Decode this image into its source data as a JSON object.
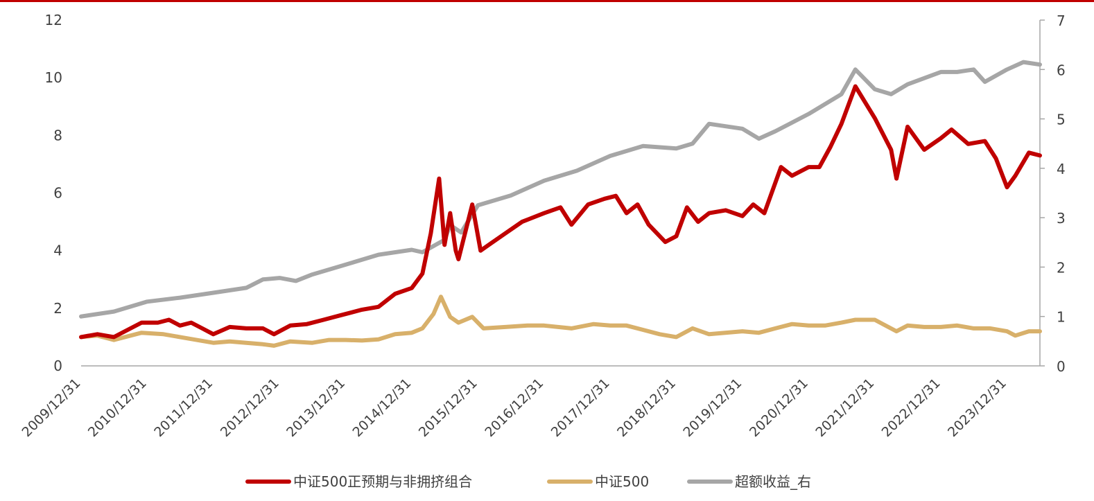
{
  "chart_data": {
    "type": "line",
    "title": "",
    "xlabel": "",
    "ylabel": "",
    "x_tick_labels": [
      "2009/12/31",
      "2010/12/31",
      "2011/12/31",
      "2012/12/31",
      "2013/12/31",
      "2014/12/31",
      "2015/12/31",
      "2016/12/31",
      "2017/12/31",
      "2018/12/31",
      "2019/12/31",
      "2020/12/31",
      "2021/12/31",
      "2022/12/31",
      "2023/12/31"
    ],
    "xlim": [
      "2009/12/31",
      "2024/06/30"
    ],
    "left_axis": {
      "ylim": [
        0,
        12
      ],
      "ticks": [
        "0",
        "2",
        "4",
        "6",
        "8",
        "10",
        "12"
      ]
    },
    "right_axis": {
      "ylim": [
        0,
        7
      ],
      "ticks": [
        "0",
        "1",
        "2",
        "3",
        "4",
        "5",
        "6",
        "7"
      ]
    },
    "grid": false,
    "legend_position": "bottom",
    "series": [
      {
        "name": "中证500正预期与非拥挤组合",
        "axis": "left",
        "color": "#c00000",
        "points": [
          [
            "2009/12/31",
            1.0
          ],
          [
            "2010/03/31",
            1.1
          ],
          [
            "2010/06/30",
            1.0
          ],
          [
            "2010/09/30",
            1.3
          ],
          [
            "2010/11/30",
            1.5
          ],
          [
            "2011/02/28",
            1.5
          ],
          [
            "2011/04/30",
            1.6
          ],
          [
            "2011/06/30",
            1.4
          ],
          [
            "2011/08/31",
            1.5
          ],
          [
            "2011/10/31",
            1.3
          ],
          [
            "2011/12/31",
            1.1
          ],
          [
            "2012/03/31",
            1.35
          ],
          [
            "2012/06/30",
            1.3
          ],
          [
            "2012/09/30",
            1.3
          ],
          [
            "2012/11/30",
            1.1
          ],
          [
            "2013/02/28",
            1.4
          ],
          [
            "2013/05/31",
            1.45
          ],
          [
            "2013/08/31",
            1.6
          ],
          [
            "2013/11/30",
            1.75
          ],
          [
            "2014/03/31",
            1.95
          ],
          [
            "2014/06/30",
            2.05
          ],
          [
            "2014/09/30",
            2.5
          ],
          [
            "2014/12/31",
            2.7
          ],
          [
            "2015/02/28",
            3.2
          ],
          [
            "2015/04/15",
            4.6
          ],
          [
            "2015/05/31",
            6.5
          ],
          [
            "2015/06/30",
            4.2
          ],
          [
            "2015/07/31",
            5.3
          ],
          [
            "2015/08/31",
            4.0
          ],
          [
            "2015/09/15",
            3.7
          ],
          [
            "2015/11/30",
            5.6
          ],
          [
            "2016/01/15",
            4.0
          ],
          [
            "2016/02/29",
            4.2
          ],
          [
            "2016/05/31",
            4.6
          ],
          [
            "2016/08/31",
            5.0
          ],
          [
            "2016/12/31",
            5.3
          ],
          [
            "2017/03/31",
            5.5
          ],
          [
            "2017/05/31",
            4.9
          ],
          [
            "2017/08/31",
            5.6
          ],
          [
            "2017/11/30",
            5.8
          ],
          [
            "2018/01/31",
            5.9
          ],
          [
            "2018/03/31",
            5.3
          ],
          [
            "2018/05/31",
            5.6
          ],
          [
            "2018/07/31",
            4.9
          ],
          [
            "2018/10/31",
            4.3
          ],
          [
            "2018/12/31",
            4.5
          ],
          [
            "2019/02/28",
            5.5
          ],
          [
            "2019/04/30",
            5.0
          ],
          [
            "2019/06/30",
            5.3
          ],
          [
            "2019/09/30",
            5.4
          ],
          [
            "2019/12/31",
            5.2
          ],
          [
            "2020/02/29",
            5.6
          ],
          [
            "2020/04/30",
            5.3
          ],
          [
            "2020/07/31",
            6.9
          ],
          [
            "2020/09/30",
            6.6
          ],
          [
            "2020/12/31",
            6.9
          ],
          [
            "2021/02/28",
            6.9
          ],
          [
            "2021/04/30",
            7.6
          ],
          [
            "2021/06/30",
            8.4
          ],
          [
            "2021/09/15",
            9.7
          ],
          [
            "2021/12/31",
            8.6
          ],
          [
            "2022/03/31",
            7.5
          ],
          [
            "2022/04/30",
            6.5
          ],
          [
            "2022/06/30",
            8.3
          ],
          [
            "2022/09/30",
            7.5
          ],
          [
            "2022/12/31",
            7.9
          ],
          [
            "2023/02/28",
            8.2
          ],
          [
            "2023/05/31",
            7.7
          ],
          [
            "2023/08/31",
            7.8
          ],
          [
            "2023/10/31",
            7.2
          ],
          [
            "2023/12/31",
            6.2
          ],
          [
            "2024/02/15",
            6.6
          ],
          [
            "2024/04/30",
            7.4
          ],
          [
            "2024/06/30",
            7.3
          ]
        ]
      },
      {
        "name": "中证500",
        "axis": "left",
        "color": "#d8b06a",
        "points": [
          [
            "2009/12/31",
            1.0
          ],
          [
            "2010/03/31",
            1.05
          ],
          [
            "2010/06/30",
            0.9
          ],
          [
            "2010/09/30",
            1.05
          ],
          [
            "2010/11/30",
            1.15
          ],
          [
            "2011/03/31",
            1.1
          ],
          [
            "2011/06/30",
            1.0
          ],
          [
            "2011/09/30",
            0.9
          ],
          [
            "2011/12/31",
            0.8
          ],
          [
            "2012/03/31",
            0.85
          ],
          [
            "2012/06/30",
            0.8
          ],
          [
            "2012/09/30",
            0.75
          ],
          [
            "2012/11/30",
            0.7
          ],
          [
            "2013/02/28",
            0.85
          ],
          [
            "2013/06/30",
            0.8
          ],
          [
            "2013/09/30",
            0.9
          ],
          [
            "2013/12/31",
            0.9
          ],
          [
            "2014/03/31",
            0.88
          ],
          [
            "2014/06/30",
            0.92
          ],
          [
            "2014/09/30",
            1.1
          ],
          [
            "2014/12/31",
            1.15
          ],
          [
            "2015/02/28",
            1.3
          ],
          [
            "2015/04/30",
            1.8
          ],
          [
            "2015/06/10",
            2.4
          ],
          [
            "2015/07/31",
            1.7
          ],
          [
            "2015/09/15",
            1.5
          ],
          [
            "2015/11/30",
            1.7
          ],
          [
            "2016/01/31",
            1.3
          ],
          [
            "2016/05/31",
            1.35
          ],
          [
            "2016/09/30",
            1.4
          ],
          [
            "2016/12/31",
            1.4
          ],
          [
            "2017/05/31",
            1.3
          ],
          [
            "2017/09/30",
            1.45
          ],
          [
            "2017/12/31",
            1.4
          ],
          [
            "2018/03/31",
            1.4
          ],
          [
            "2018/06/30",
            1.25
          ],
          [
            "2018/09/30",
            1.1
          ],
          [
            "2018/12/31",
            1.0
          ],
          [
            "2019/03/31",
            1.3
          ],
          [
            "2019/06/30",
            1.1
          ],
          [
            "2019/12/31",
            1.2
          ],
          [
            "2020/03/31",
            1.15
          ],
          [
            "2020/06/30",
            1.3
          ],
          [
            "2020/09/30",
            1.45
          ],
          [
            "2020/12/31",
            1.4
          ],
          [
            "2021/03/31",
            1.4
          ],
          [
            "2021/06/30",
            1.5
          ],
          [
            "2021/09/15",
            1.6
          ],
          [
            "2021/12/31",
            1.6
          ],
          [
            "2022/04/30",
            1.2
          ],
          [
            "2022/06/30",
            1.4
          ],
          [
            "2022/09/30",
            1.35
          ],
          [
            "2022/12/31",
            1.35
          ],
          [
            "2023/03/31",
            1.4
          ],
          [
            "2023/06/30",
            1.3
          ],
          [
            "2023/09/30",
            1.3
          ],
          [
            "2023/12/31",
            1.2
          ],
          [
            "2024/02/15",
            1.05
          ],
          [
            "2024/04/30",
            1.2
          ],
          [
            "2024/06/30",
            1.2
          ]
        ]
      },
      {
        "name": "超额收益_右",
        "axis": "right",
        "color": "#a6a6a6",
        "points": [
          [
            "2009/12/31",
            1.0
          ],
          [
            "2010/06/30",
            1.1
          ],
          [
            "2010/12/31",
            1.3
          ],
          [
            "2011/06/30",
            1.38
          ],
          [
            "2011/12/31",
            1.48
          ],
          [
            "2012/06/30",
            1.58
          ],
          [
            "2012/09/30",
            1.75
          ],
          [
            "2012/12/31",
            1.78
          ],
          [
            "2013/03/31",
            1.72
          ],
          [
            "2013/06/30",
            1.85
          ],
          [
            "2013/12/31",
            2.05
          ],
          [
            "2014/06/30",
            2.25
          ],
          [
            "2014/12/31",
            2.35
          ],
          [
            "2015/02/28",
            2.3
          ],
          [
            "2015/06/30",
            2.55
          ],
          [
            "2015/07/31",
            2.85
          ],
          [
            "2015/09/30",
            2.7
          ],
          [
            "2015/12/31",
            3.25
          ],
          [
            "2016/06/30",
            3.45
          ],
          [
            "2016/12/31",
            3.75
          ],
          [
            "2017/06/30",
            3.95
          ],
          [
            "2017/12/31",
            4.25
          ],
          [
            "2018/06/30",
            4.45
          ],
          [
            "2018/12/31",
            4.4
          ],
          [
            "2019/03/31",
            4.5
          ],
          [
            "2019/06/30",
            4.9
          ],
          [
            "2019/12/31",
            4.8
          ],
          [
            "2020/03/31",
            4.6
          ],
          [
            "2020/06/30",
            4.75
          ],
          [
            "2020/12/31",
            5.1
          ],
          [
            "2021/06/30",
            5.5
          ],
          [
            "2021/09/15",
            6.0
          ],
          [
            "2021/12/31",
            5.6
          ],
          [
            "2022/03/31",
            5.5
          ],
          [
            "2022/06/30",
            5.7
          ],
          [
            "2022/12/31",
            5.95
          ],
          [
            "2023/03/31",
            5.95
          ],
          [
            "2023/06/30",
            6.0
          ],
          [
            "2023/08/31",
            5.75
          ],
          [
            "2023/12/31",
            6.0
          ],
          [
            "2024/03/31",
            6.15
          ],
          [
            "2024/06/30",
            6.1
          ]
        ]
      }
    ]
  }
}
